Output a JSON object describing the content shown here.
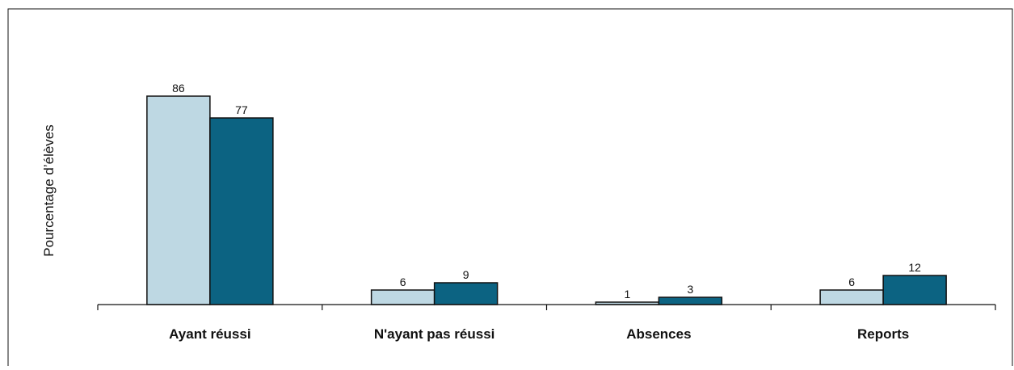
{
  "chart_data": {
    "type": "bar",
    "title": "",
    "xlabel": "",
    "ylabel": "Pourcentage d’élèves",
    "categories": [
      "Ayant réussi",
      "N'ayant pas réussi",
      "Absences",
      "Reports"
    ],
    "series": [
      {
        "values": [
          86,
          6,
          1,
          6
        ],
        "color": "#bed8e3"
      },
      {
        "values": [
          77,
          9,
          3,
          12
        ],
        "color": "#0c6382"
      }
    ],
    "ylim": [
      0,
      100
    ],
    "grid": false,
    "legend": "none"
  },
  "colors": {
    "bar_stroke": "#111111",
    "axis": "#111111",
    "frame": "#111111",
    "background": "#ffffff"
  }
}
